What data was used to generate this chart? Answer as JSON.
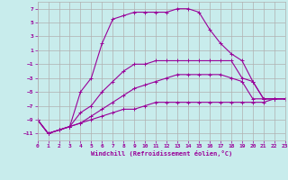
{
  "xlabel": "Windchill (Refroidissement éolien,°C)",
  "background_color": "#c8ecec",
  "grid_color": "#b0b0b0",
  "line_color": "#990099",
  "xlim": [
    0,
    23
  ],
  "ylim": [
    -12,
    8
  ],
  "xticks": [
    0,
    1,
    2,
    3,
    4,
    5,
    6,
    7,
    8,
    9,
    10,
    11,
    12,
    13,
    14,
    15,
    16,
    17,
    18,
    19,
    20,
    21,
    22,
    23
  ],
  "yticks": [
    -11,
    -9,
    -7,
    -5,
    -3,
    -1,
    1,
    3,
    5,
    7
  ],
  "series": [
    {
      "x": [
        0,
        1,
        2,
        3,
        4,
        5,
        6,
        7,
        8,
        9,
        10,
        11,
        12,
        13,
        14,
        15,
        16,
        17,
        18,
        19,
        20,
        21,
        22,
        23
      ],
      "y": [
        -9,
        -11,
        -10.5,
        -10,
        -5,
        -3,
        2,
        5.5,
        6,
        6.5,
        6.5,
        6.5,
        6.5,
        7,
        7,
        6.5,
        4,
        2,
        0.5,
        -0.5,
        -3.5,
        -6,
        -6,
        -6
      ]
    },
    {
      "x": [
        0,
        1,
        2,
        3,
        4,
        5,
        6,
        7,
        8,
        9,
        10,
        11,
        12,
        13,
        14,
        15,
        16,
        17,
        18,
        19,
        20,
        21,
        22,
        23
      ],
      "y": [
        -9,
        -11,
        -10.5,
        -10,
        -8,
        -7,
        -5,
        -3.5,
        -2,
        -1,
        -1,
        -0.5,
        -0.5,
        -0.5,
        -0.5,
        -0.5,
        -0.5,
        -0.5,
        -0.5,
        -3,
        -3.5,
        -6,
        -6,
        -6
      ]
    },
    {
      "x": [
        0,
        1,
        2,
        3,
        4,
        5,
        6,
        7,
        8,
        9,
        10,
        11,
        12,
        13,
        14,
        15,
        16,
        17,
        18,
        19,
        20,
        21,
        22,
        23
      ],
      "y": [
        -9,
        -11,
        -10.5,
        -10,
        -9.5,
        -8.5,
        -7.5,
        -6.5,
        -5.5,
        -4.5,
        -4,
        -3.5,
        -3,
        -2.5,
        -2.5,
        -2.5,
        -2.5,
        -2.5,
        -3,
        -3.5,
        -6,
        -6,
        -6,
        -6
      ]
    },
    {
      "x": [
        0,
        1,
        2,
        3,
        4,
        5,
        6,
        7,
        8,
        9,
        10,
        11,
        12,
        13,
        14,
        15,
        16,
        17,
        18,
        19,
        20,
        21,
        22,
        23
      ],
      "y": [
        -9,
        -11,
        -10.5,
        -10,
        -9.5,
        -9,
        -8.5,
        -8,
        -7.5,
        -7.5,
        -7,
        -6.5,
        -6.5,
        -6.5,
        -6.5,
        -6.5,
        -6.5,
        -6.5,
        -6.5,
        -6.5,
        -6.5,
        -6.5,
        -6,
        -6
      ]
    }
  ]
}
